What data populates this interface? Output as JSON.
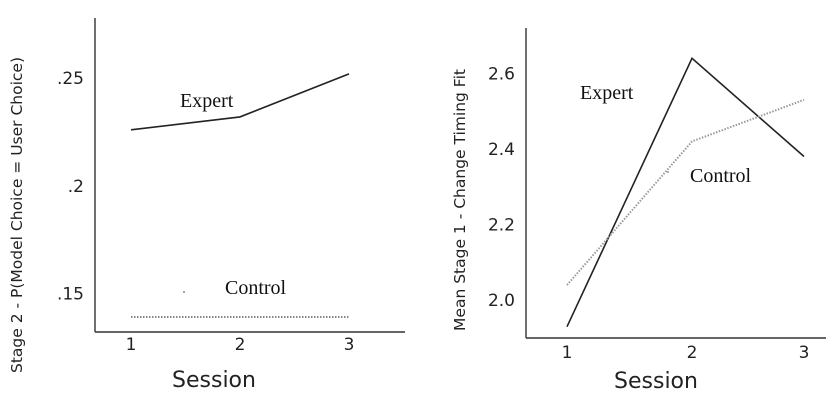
{
  "chart_data": [
    {
      "type": "line",
      "xlabel": "Session",
      "ylabel": "Stage 2 - P(Model Choice = User Choice)",
      "x": [
        1,
        2,
        3
      ],
      "xticks": [
        "1",
        "2",
        "3"
      ],
      "yticks": [
        ".15",
        ".2",
        ".25"
      ],
      "ytick_values": [
        0.15,
        0.2,
        0.25
      ],
      "ylim": [
        0.132,
        0.278
      ],
      "xlim": [
        0.7,
        3.3
      ],
      "grid": false,
      "series": [
        {
          "name": "Expert",
          "values": [
            0.226,
            0.232,
            0.252
          ],
          "style": "solid",
          "color": "#222222"
        },
        {
          "name": "Control",
          "values": [
            0.139,
            0.139,
            0.139
          ],
          "style": "dotted",
          "color": "#888888"
        }
      ]
    },
    {
      "type": "line",
      "xlabel": "Session",
      "ylabel": "Mean Stage 1 - Change Timing Fit",
      "x": [
        1,
        2,
        3
      ],
      "xticks": [
        "1",
        "2",
        "3"
      ],
      "yticks": [
        "2.0",
        "2.2",
        "2.4",
        "2.6"
      ],
      "ytick_values": [
        2.0,
        2.2,
        2.4,
        2.6
      ],
      "ylim": [
        1.9,
        2.72
      ],
      "xlim": [
        0.7,
        3.3
      ],
      "grid": false,
      "series": [
        {
          "name": "Expert",
          "values": [
            1.93,
            2.64,
            2.38
          ],
          "style": "solid",
          "color": "#222222"
        },
        {
          "name": "Control",
          "values": [
            2.04,
            2.42,
            2.53
          ],
          "style": "dotted",
          "color": "#999999"
        }
      ]
    }
  ]
}
